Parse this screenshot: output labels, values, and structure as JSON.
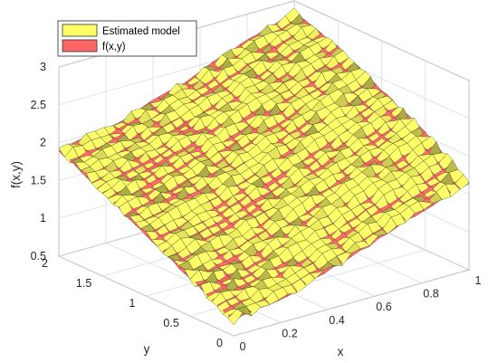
{
  "chart_data": {
    "type": "surface",
    "title": "",
    "xlabel": "x",
    "ylabel": "y",
    "zlabel": "f(x,y)",
    "xlim": [
      0,
      1
    ],
    "ylim": [
      0,
      2
    ],
    "zlim": [
      0.5,
      3
    ],
    "x_ticks": [
      "0",
      "0.2",
      "0.4",
      "0.6",
      "0.8",
      "1"
    ],
    "y_ticks": [
      "0",
      "0.5",
      "1",
      "1.5",
      "2"
    ],
    "z_ticks": [
      "0.5",
      "1",
      "1.5",
      "2",
      "2.5",
      "3"
    ],
    "grid": true,
    "legend_position": "top-left",
    "x": [
      0,
      0.25,
      0.5,
      0.75,
      1
    ],
    "y": [
      0,
      0.5,
      1,
      1.5,
      2
    ],
    "series": [
      {
        "name": "Estimated model",
        "color": "#ffff66",
        "z": [
          [
            0.7,
            1.0,
            1.3,
            1.6,
            1.9
          ],
          [
            0.85,
            1.15,
            1.5,
            1.8,
            2.05
          ],
          [
            1.1,
            1.45,
            1.75,
            2.05,
            2.3
          ],
          [
            1.4,
            1.75,
            2.05,
            2.35,
            2.6
          ],
          [
            1.65,
            2.05,
            2.35,
            2.65,
            2.85
          ]
        ]
      },
      {
        "name": "f(x,y)",
        "color": "#ff6666",
        "z": [
          [
            0.7,
            1.0,
            1.3,
            1.6,
            1.9
          ],
          [
            0.85,
            1.15,
            1.5,
            1.8,
            2.05
          ],
          [
            1.1,
            1.45,
            1.75,
            2.05,
            2.3
          ],
          [
            1.4,
            1.75,
            2.05,
            2.35,
            2.6
          ],
          [
            1.65,
            2.05,
            2.35,
            2.65,
            2.85
          ]
        ]
      }
    ]
  }
}
